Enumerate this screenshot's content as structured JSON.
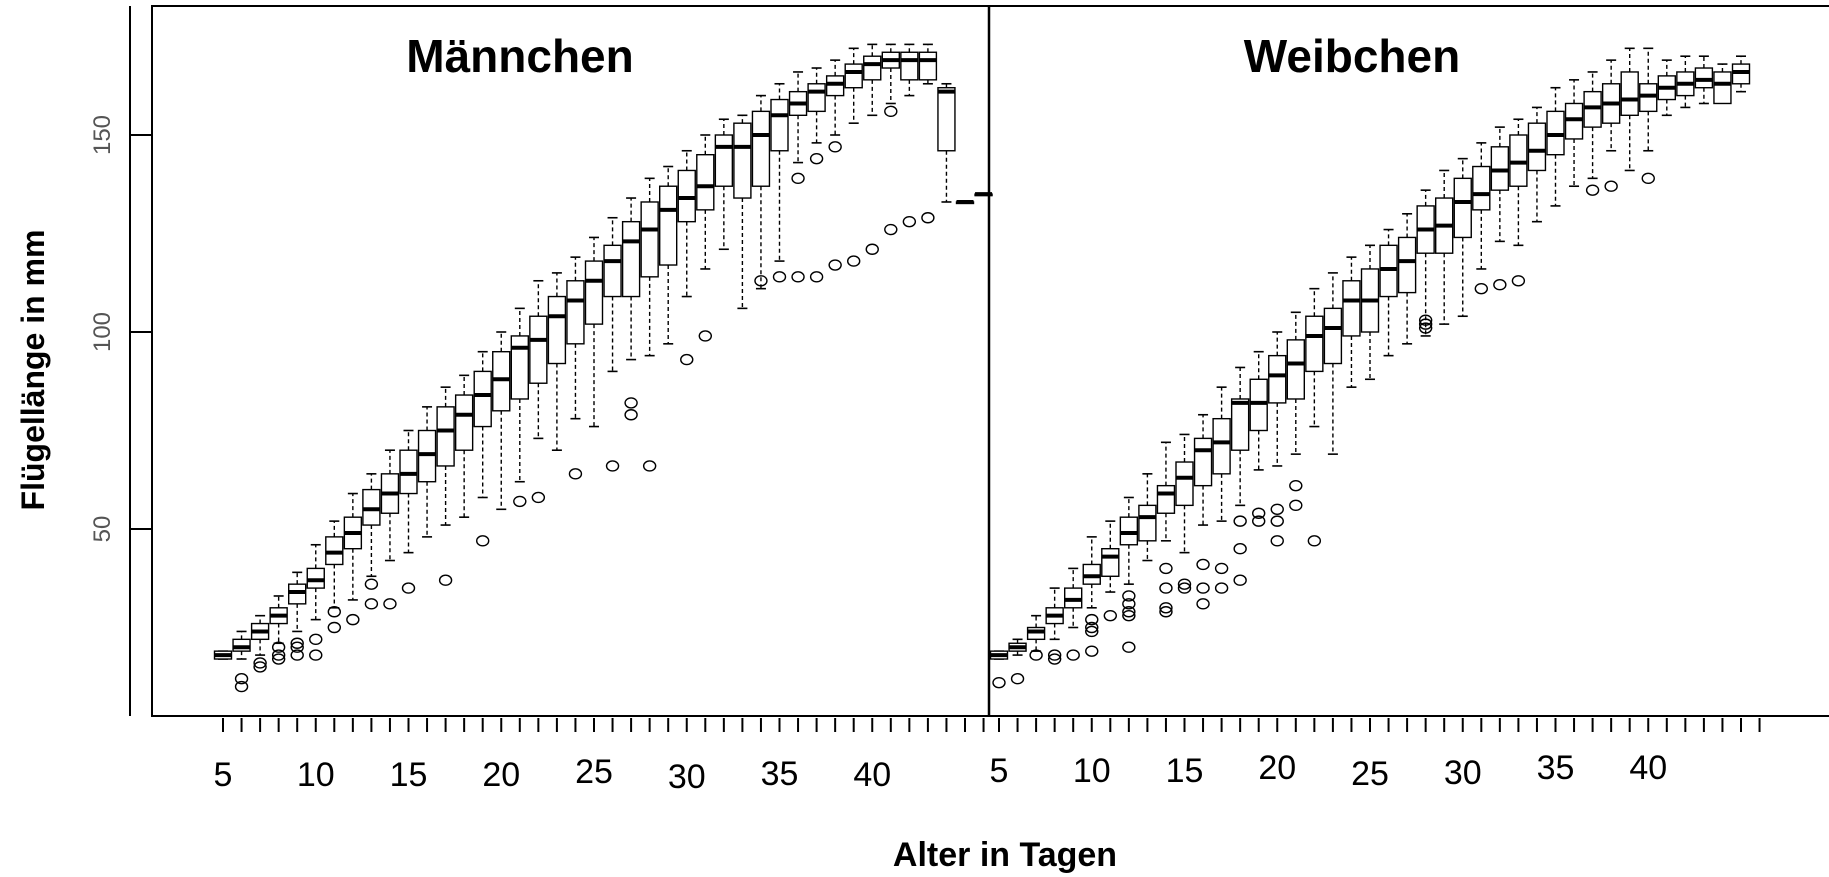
{
  "chart_data": {
    "type": "boxplot",
    "ylabel": "Flügellänge in mm",
    "xlabel": "Alter in Tagen",
    "y_ticks": [
      50,
      100,
      150
    ],
    "ylim": [
      5,
      185
    ],
    "xlim": [
      1,
      49
    ],
    "grid": false,
    "legend": "none",
    "panels": [
      {
        "title": "Männchen",
        "x_tick_labels": [
          "5",
          "10",
          "15",
          "20",
          "25",
          "30",
          "35",
          "40"
        ],
        "x_tick_label_ages": [
          5,
          10,
          15,
          20,
          25,
          30,
          35,
          40
        ],
        "n_ticks": 42,
        "boxes": [
          {
            "age": 5,
            "wlo": 17,
            "q1": 17,
            "median": 18,
            "q3": 19,
            "whi": 19,
            "outliers": []
          },
          {
            "age": 6,
            "wlo": 17,
            "q1": 19,
            "median": 20,
            "q3": 22,
            "whi": 24,
            "outliers": [
              12,
              10
            ]
          },
          {
            "age": 7,
            "wlo": 18,
            "q1": 22,
            "median": 24,
            "q3": 26,
            "whi": 28,
            "outliers": [
              16,
              15
            ]
          },
          {
            "age": 8,
            "wlo": 21,
            "q1": 26,
            "median": 28,
            "q3": 30,
            "whi": 33,
            "outliers": [
              20,
              18,
              17
            ]
          },
          {
            "age": 9,
            "wlo": 24,
            "q1": 31,
            "median": 34,
            "q3": 36,
            "whi": 39,
            "outliers": [
              21,
              20,
              18
            ]
          },
          {
            "age": 10,
            "wlo": 27,
            "q1": 35,
            "median": 37,
            "q3": 40,
            "whi": 46,
            "outliers": [
              22,
              18
            ]
          },
          {
            "age": 11,
            "wlo": 30,
            "q1": 41,
            "median": 44,
            "q3": 48,
            "whi": 52,
            "outliers": [
              29,
              25
            ]
          },
          {
            "age": 12,
            "wlo": 32,
            "q1": 45,
            "median": 49,
            "q3": 53,
            "whi": 59,
            "outliers": [
              27
            ]
          },
          {
            "age": 13,
            "wlo": 38,
            "q1": 51,
            "median": 55,
            "q3": 60,
            "whi": 64,
            "outliers": [
              36,
              31
            ]
          },
          {
            "age": 14,
            "wlo": 42,
            "q1": 54,
            "median": 59,
            "q3": 64,
            "whi": 70,
            "outliers": [
              31
            ]
          },
          {
            "age": 15,
            "wlo": 44,
            "q1": 59,
            "median": 64,
            "q3": 70,
            "whi": 75,
            "outliers": [
              35
            ]
          },
          {
            "age": 16,
            "wlo": 48,
            "q1": 62,
            "median": 69,
            "q3": 75,
            "whi": 81,
            "outliers": []
          },
          {
            "age": 17,
            "wlo": 51,
            "q1": 66,
            "median": 75,
            "q3": 81,
            "whi": 86,
            "outliers": [
              37
            ]
          },
          {
            "age": 18,
            "wlo": 53,
            "q1": 70,
            "median": 79,
            "q3": 84,
            "whi": 89,
            "outliers": []
          },
          {
            "age": 19,
            "wlo": 58,
            "q1": 76,
            "median": 84,
            "q3": 90,
            "whi": 95,
            "outliers": [
              47
            ]
          },
          {
            "age": 20,
            "wlo": 55,
            "q1": 80,
            "median": 88,
            "q3": 95,
            "whi": 100,
            "outliers": []
          },
          {
            "age": 21,
            "wlo": 62,
            "q1": 83,
            "median": 96,
            "q3": 99,
            "whi": 106,
            "outliers": [
              57
            ]
          },
          {
            "age": 22,
            "wlo": 73,
            "q1": 87,
            "median": 98,
            "q3": 104,
            "whi": 113,
            "outliers": [
              58
            ]
          },
          {
            "age": 23,
            "wlo": 70,
            "q1": 92,
            "median": 104,
            "q3": 109,
            "whi": 115,
            "outliers": []
          },
          {
            "age": 24,
            "wlo": 78,
            "q1": 97,
            "median": 108,
            "q3": 113,
            "whi": 119,
            "outliers": [
              64
            ]
          },
          {
            "age": 25,
            "wlo": 76,
            "q1": 102,
            "median": 113,
            "q3": 118,
            "whi": 124,
            "outliers": []
          },
          {
            "age": 26,
            "wlo": 90,
            "q1": 109,
            "median": 118,
            "q3": 122,
            "whi": 129,
            "outliers": [
              66
            ]
          },
          {
            "age": 27,
            "wlo": 93,
            "q1": 109,
            "median": 123,
            "q3": 128,
            "whi": 134,
            "outliers": [
              82,
              79
            ]
          },
          {
            "age": 28,
            "wlo": 94,
            "q1": 114,
            "median": 126,
            "q3": 133,
            "whi": 139,
            "outliers": [
              66
            ]
          },
          {
            "age": 29,
            "wlo": 97,
            "q1": 117,
            "median": 131,
            "q3": 137,
            "whi": 142,
            "outliers": []
          },
          {
            "age": 30,
            "wlo": 109,
            "q1": 128,
            "median": 134,
            "q3": 141,
            "whi": 146,
            "outliers": [
              93
            ]
          },
          {
            "age": 31,
            "wlo": 116,
            "q1": 131,
            "median": 137,
            "q3": 145,
            "whi": 150,
            "outliers": [
              99
            ]
          },
          {
            "age": 32,
            "wlo": 121,
            "q1": 137,
            "median": 147,
            "q3": 150,
            "whi": 154,
            "outliers": []
          },
          {
            "age": 33,
            "wlo": 106,
            "q1": 134,
            "median": 147,
            "q3": 153,
            "whi": 155,
            "outliers": []
          },
          {
            "age": 34,
            "wlo": 111,
            "q1": 137,
            "median": 150,
            "q3": 156,
            "whi": 160,
            "outliers": [
              113
            ]
          },
          {
            "age": 35,
            "wlo": 118,
            "q1": 146,
            "median": 155,
            "q3": 159,
            "whi": 163,
            "outliers": [
              114
            ]
          },
          {
            "age": 36,
            "wlo": 143,
            "q1": 155,
            "median": 158,
            "q3": 161,
            "whi": 166,
            "outliers": [
              139,
              114
            ]
          },
          {
            "age": 37,
            "wlo": 148,
            "q1": 156,
            "median": 161,
            "q3": 163,
            "whi": 167,
            "outliers": [
              144,
              114
            ]
          },
          {
            "age": 38,
            "wlo": 150,
            "q1": 160,
            "median": 163,
            "q3": 165,
            "whi": 169,
            "outliers": [
              147,
              117
            ]
          },
          {
            "age": 39,
            "wlo": 153,
            "q1": 162,
            "median": 166,
            "q3": 168,
            "whi": 172,
            "outliers": [
              118
            ]
          },
          {
            "age": 40,
            "wlo": 155,
            "q1": 164,
            "median": 168,
            "q3": 170,
            "whi": 173,
            "outliers": [
              121
            ]
          },
          {
            "age": 41,
            "wlo": 158,
            "q1": 167,
            "median": 169,
            "q3": 171,
            "whi": 173,
            "outliers": [
              156,
              126
            ]
          },
          {
            "age": 42,
            "wlo": 160,
            "q1": 164,
            "median": 169,
            "q3": 171,
            "whi": 173,
            "outliers": [
              128
            ]
          },
          {
            "age": 43,
            "wlo": 163,
            "q1": 164,
            "median": 169,
            "q3": 171,
            "whi": 173,
            "outliers": [
              129
            ]
          },
          {
            "age": 44,
            "wlo": 133,
            "q1": 146,
            "median": 161,
            "q3": 162,
            "whi": 163,
            "outliers": []
          },
          {
            "age": 45,
            "wlo": 133,
            "q1": 133,
            "median": 133,
            "q3": 133,
            "whi": 133,
            "outliers": []
          },
          {
            "age": 46,
            "wlo": 135,
            "q1": 135,
            "median": 135,
            "q3": 135,
            "whi": 135,
            "outliers": []
          }
        ]
      },
      {
        "title": "Weibchen",
        "x_tick_labels": [
          "5",
          "10",
          "15",
          "20",
          "25",
          "30",
          "35",
          "40"
        ],
        "x_tick_label_ages": [
          5,
          10,
          15,
          20,
          25,
          30,
          35,
          40
        ],
        "n_ticks": 42,
        "boxes": [
          {
            "age": 5,
            "wlo": 17,
            "q1": 17,
            "median": 18,
            "q3": 19,
            "whi": 19,
            "outliers": [
              11
            ]
          },
          {
            "age": 6,
            "wlo": 18,
            "q1": 19,
            "median": 20,
            "q3": 21,
            "whi": 22,
            "outliers": [
              12
            ]
          },
          {
            "age": 7,
            "wlo": 19,
            "q1": 22,
            "median": 24,
            "q3": 25,
            "whi": 28,
            "outliers": [
              18
            ]
          },
          {
            "age": 8,
            "wlo": 22,
            "q1": 26,
            "median": 28,
            "q3": 30,
            "whi": 35,
            "outliers": [
              18,
              17
            ]
          },
          {
            "age": 9,
            "wlo": 25,
            "q1": 30,
            "median": 32,
            "q3": 35,
            "whi": 40,
            "outliers": [
              18
            ]
          },
          {
            "age": 10,
            "wlo": 30,
            "q1": 36,
            "median": 38,
            "q3": 41,
            "whi": 48,
            "outliers": [
              27,
              25,
              24,
              19
            ]
          },
          {
            "age": 11,
            "wlo": 34,
            "q1": 38,
            "median": 43,
            "q3": 45,
            "whi": 52,
            "outliers": [
              28
            ]
          },
          {
            "age": 12,
            "wlo": 36,
            "q1": 46,
            "median": 49,
            "q3": 53,
            "whi": 58,
            "outliers": [
              33,
              31,
              29,
              28,
              20
            ]
          },
          {
            "age": 13,
            "wlo": 42,
            "q1": 47,
            "median": 53,
            "q3": 56,
            "whi": 64,
            "outliers": []
          },
          {
            "age": 14,
            "wlo": 47,
            "q1": 54,
            "median": 59,
            "q3": 61,
            "whi": 72,
            "outliers": [
              40,
              35,
              30,
              29
            ]
          },
          {
            "age": 15,
            "wlo": 44,
            "q1": 56,
            "median": 63,
            "q3": 67,
            "whi": 74,
            "outliers": [
              36,
              35
            ]
          },
          {
            "age": 16,
            "wlo": 51,
            "q1": 61,
            "median": 70,
            "q3": 73,
            "whi": 79,
            "outliers": [
              41,
              35,
              31
            ]
          },
          {
            "age": 17,
            "wlo": 52,
            "q1": 64,
            "median": 72,
            "q3": 78,
            "whi": 86,
            "outliers": [
              40,
              35
            ]
          },
          {
            "age": 18,
            "wlo": 56,
            "q1": 70,
            "median": 82,
            "q3": 83,
            "whi": 91,
            "outliers": [
              52,
              45,
              37
            ]
          },
          {
            "age": 19,
            "wlo": 65,
            "q1": 75,
            "median": 82,
            "q3": 88,
            "whi": 95,
            "outliers": [
              54,
              52
            ]
          },
          {
            "age": 20,
            "wlo": 66,
            "q1": 82,
            "median": 89,
            "q3": 94,
            "whi": 100,
            "outliers": [
              55,
              52,
              47
            ]
          },
          {
            "age": 21,
            "wlo": 69,
            "q1": 83,
            "median": 92,
            "q3": 98,
            "whi": 105,
            "outliers": [
              61,
              56
            ]
          },
          {
            "age": 22,
            "wlo": 76,
            "q1": 90,
            "median": 99,
            "q3": 104,
            "whi": 111,
            "outliers": [
              47
            ]
          },
          {
            "age": 23,
            "wlo": 69,
            "q1": 92,
            "median": 101,
            "q3": 106,
            "whi": 115,
            "outliers": []
          },
          {
            "age": 24,
            "wlo": 86,
            "q1": 99,
            "median": 108,
            "q3": 113,
            "whi": 119,
            "outliers": []
          },
          {
            "age": 25,
            "wlo": 88,
            "q1": 100,
            "median": 108,
            "q3": 116,
            "whi": 122,
            "outliers": []
          },
          {
            "age": 26,
            "wlo": 94,
            "q1": 109,
            "median": 116,
            "q3": 122,
            "whi": 126,
            "outliers": []
          },
          {
            "age": 27,
            "wlo": 97,
            "q1": 110,
            "median": 118,
            "q3": 124,
            "whi": 130,
            "outliers": []
          },
          {
            "age": 28,
            "wlo": 99,
            "q1": 120,
            "median": 126,
            "q3": 132,
            "whi": 136,
            "outliers": [
              103,
              102,
              101
            ]
          },
          {
            "age": 29,
            "wlo": 102,
            "q1": 120,
            "median": 127,
            "q3": 134,
            "whi": 141,
            "outliers": []
          },
          {
            "age": 30,
            "wlo": 104,
            "q1": 124,
            "median": 133,
            "q3": 139,
            "whi": 144,
            "outliers": []
          },
          {
            "age": 31,
            "wlo": 116,
            "q1": 131,
            "median": 135,
            "q3": 142,
            "whi": 148,
            "outliers": [
              111
            ]
          },
          {
            "age": 32,
            "wlo": 123,
            "q1": 136,
            "median": 141,
            "q3": 147,
            "whi": 152,
            "outliers": [
              112
            ]
          },
          {
            "age": 33,
            "wlo": 122,
            "q1": 137,
            "median": 143,
            "q3": 150,
            "whi": 154,
            "outliers": [
              113
            ]
          },
          {
            "age": 34,
            "wlo": 128,
            "q1": 141,
            "median": 146,
            "q3": 153,
            "whi": 157,
            "outliers": []
          },
          {
            "age": 35,
            "wlo": 132,
            "q1": 145,
            "median": 150,
            "q3": 156,
            "whi": 162,
            "outliers": []
          },
          {
            "age": 36,
            "wlo": 137,
            "q1": 149,
            "median": 154,
            "q3": 158,
            "whi": 164,
            "outliers": []
          },
          {
            "age": 37,
            "wlo": 139,
            "q1": 152,
            "median": 157,
            "q3": 161,
            "whi": 166,
            "outliers": [
              136
            ]
          },
          {
            "age": 38,
            "wlo": 146,
            "q1": 153,
            "median": 158,
            "q3": 163,
            "whi": 169,
            "outliers": [
              137
            ]
          },
          {
            "age": 39,
            "wlo": 141,
            "q1": 155,
            "median": 159,
            "q3": 166,
            "whi": 172,
            "outliers": []
          },
          {
            "age": 40,
            "wlo": 146,
            "q1": 156,
            "median": 160,
            "q3": 163,
            "whi": 172,
            "outliers": [
              139
            ]
          },
          {
            "age": 41,
            "wlo": 155,
            "q1": 159,
            "median": 162,
            "q3": 165,
            "whi": 169,
            "outliers": []
          },
          {
            "age": 42,
            "wlo": 157,
            "q1": 160,
            "median": 163,
            "q3": 166,
            "whi": 170,
            "outliers": []
          },
          {
            "age": 43,
            "wlo": 158,
            "q1": 162,
            "median": 164,
            "q3": 167,
            "whi": 170,
            "outliers": []
          },
          {
            "age": 44,
            "wlo": 160,
            "q1": 158,
            "median": 163,
            "q3": 166,
            "whi": 168,
            "outliers": []
          },
          {
            "age": 45,
            "wlo": 161,
            "q1": 163,
            "median": 166,
            "q3": 168,
            "whi": 170,
            "outliers": []
          }
        ]
      }
    ]
  }
}
